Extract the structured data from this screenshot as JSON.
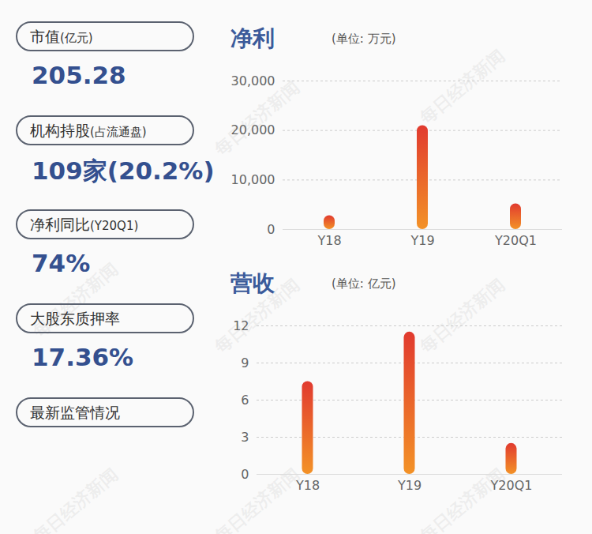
{
  "cards": [
    {
      "label": "市值(亿元)",
      "value": "205.28"
    },
    {
      "label": "机构持股(占流通盘)",
      "value": "109家(20.2%)"
    },
    {
      "label": "净利同比(Y20Q1)",
      "value": "74%"
    },
    {
      "label": "大股东质押率",
      "value": "17.36%"
    },
    {
      "label": "最新监管情况"
    }
  ],
  "watermark": "每日经济新闻",
  "chart_data": [
    {
      "type": "bar",
      "title": "净利",
      "subtitle": "(单位: 万元)",
      "categories": [
        "Y18",
        "Y19",
        "Y20Q1"
      ],
      "values": [
        2800,
        21000,
        5200
      ],
      "color": "#e13a2f",
      "ylim": [
        0,
        30000
      ],
      "yticks": [
        0,
        {
          "value": 10000,
          "label": "10,000"
        },
        {
          "value": 20000,
          "label": "20,000"
        },
        {
          "value": 30000,
          "label": "30,000"
        }
      ],
      "grid": true
    },
    {
      "type": "bar",
      "title": "营收",
      "subtitle": "(单位: 亿元)",
      "categories": [
        "Y18",
        "Y19",
        "Y20Q1"
      ],
      "values": [
        7.5,
        11.5,
        2.5
      ],
      "color": "#e13a2f",
      "ylim": [
        0,
        12
      ],
      "yticks": [
        0,
        3,
        6,
        9,
        12
      ],
      "grid": true
    }
  ]
}
